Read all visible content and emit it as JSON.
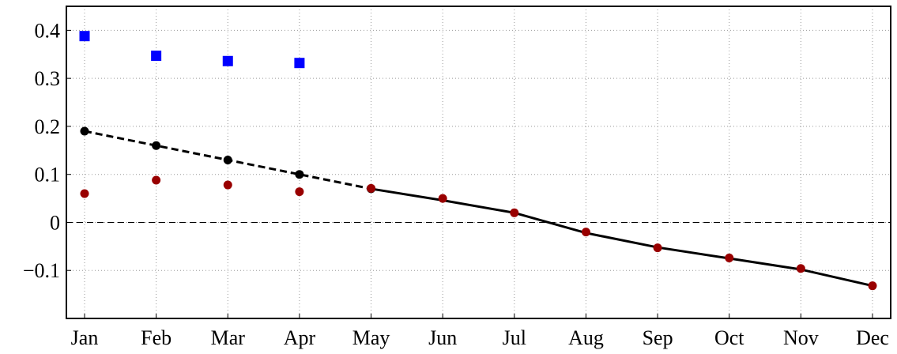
{
  "chart_data": {
    "type": "line",
    "categories": [
      "Jan",
      "Feb",
      "Mar",
      "Apr",
      "May",
      "Jun",
      "Jul",
      "Aug",
      "Sep",
      "Oct",
      "Nov",
      "Dec"
    ],
    "series": [
      {
        "color": "#0000ff",
        "line": "none",
        "marker": "square",
        "values": [
          0.388,
          0.347,
          0.336,
          0.332,
          null,
          null,
          null,
          null,
          null,
          null,
          null,
          null
        ]
      },
      {
        "color": "#000000",
        "line": "dashed",
        "marker": "circle",
        "values": [
          0.19,
          0.16,
          0.13,
          0.1,
          0.07,
          null,
          null,
          null,
          null,
          null,
          null,
          null
        ]
      },
      {
        "color": "#000000",
        "line": "solid",
        "marker": "none",
        "values": [
          null,
          null,
          null,
          null,
          0.07,
          0.046,
          0.02,
          -0.022,
          -0.052,
          -0.075,
          -0.098,
          -0.132
        ]
      },
      {
        "color": "#990000",
        "line": "none",
        "marker": "circle",
        "values": [
          0.06,
          0.088,
          0.078,
          0.064,
          0.071,
          0.05,
          0.02,
          -0.02,
          -0.053,
          -0.074,
          -0.096,
          -0.132
        ]
      }
    ],
    "ylim": [
      -0.2,
      0.45
    ],
    "yticks": [
      {
        "value": -0.1,
        "label": "−0.1"
      },
      0,
      0.1,
      0.2,
      0.3,
      0.4
    ],
    "grid": true,
    "zero_line": true
  }
}
